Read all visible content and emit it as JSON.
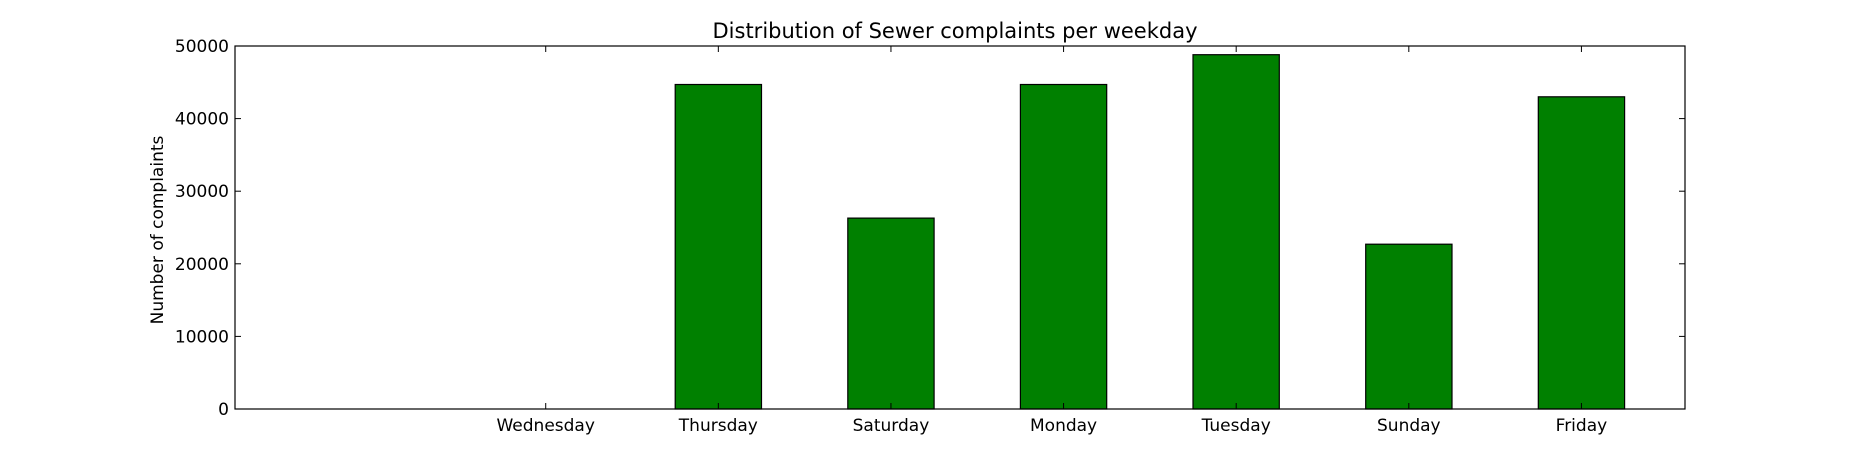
{
  "chart_data": {
    "type": "bar",
    "title": "Distribution of  Sewer complaints per weekday",
    "xlabel": "",
    "ylabel": "Number of complaints",
    "categories": [
      "Wednesday",
      "Thursday",
      "Saturday",
      "Monday",
      "Tuesday",
      "Sunday",
      "Friday"
    ],
    "values": [
      0,
      44700,
      26300,
      44700,
      48800,
      22700,
      43000
    ],
    "ylim": [
      0,
      50000
    ],
    "yticks": [
      0,
      10000,
      20000,
      30000,
      40000,
      50000
    ],
    "bar_color": "#008000",
    "grid": false,
    "legend": "none"
  }
}
